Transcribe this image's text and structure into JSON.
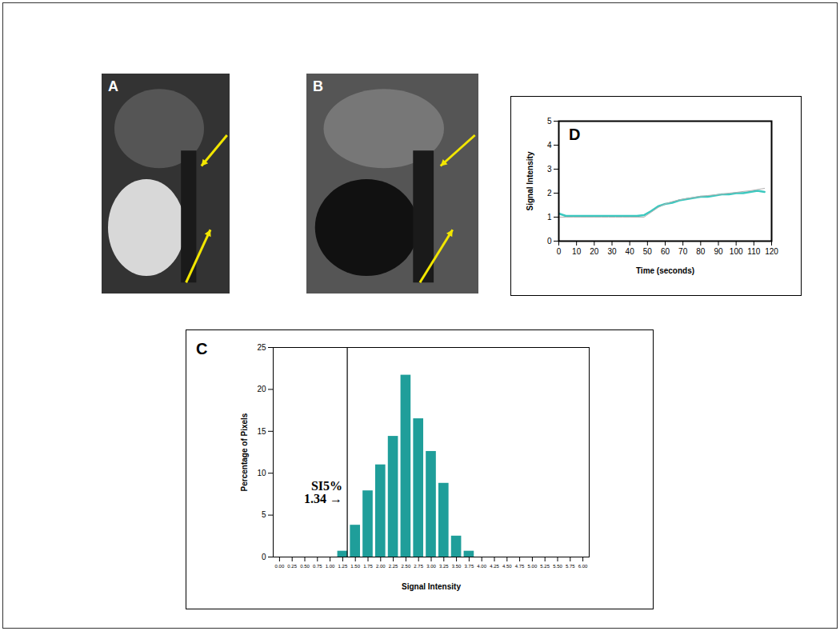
{
  "images": [
    {
      "label": "A"
    },
    {
      "label": "B"
    }
  ],
  "chart_data": [
    {
      "type": "bar",
      "title": "C",
      "x": [
        1.25,
        1.5,
        1.75,
        2.0,
        2.25,
        2.5,
        2.75,
        3.0,
        3.25,
        3.5,
        3.75
      ],
      "values": [
        0.7,
        3.8,
        7.9,
        11,
        14.4,
        21.7,
        16.5,
        12.6,
        8.8,
        2.5,
        0.7
      ],
      "color": "#1f9e9a",
      "xlabel": "Signal Intensity",
      "ylabel": "Percentage of Pixels",
      "xlim": [
        -0.125,
        6.125
      ],
      "xticks": [
        {
          "value": 0,
          "label": "0.00"
        },
        {
          "value": 0.25,
          "label": "0.25"
        },
        {
          "value": 0.5,
          "label": "0.50"
        },
        {
          "value": 0.75,
          "label": "0.75"
        },
        {
          "value": 1,
          "label": "1.00"
        },
        {
          "value": 1.25,
          "label": "1.25"
        },
        {
          "value": 1.5,
          "label": "1.50"
        },
        {
          "value": 1.75,
          "label": "1.75"
        },
        {
          "value": 2,
          "label": "2.00"
        },
        {
          "value": 2.25,
          "label": "2.25"
        },
        {
          "value": 2.5,
          "label": "2.50"
        },
        {
          "value": 2.75,
          "label": "2.75"
        },
        {
          "value": 3,
          "label": "3.00"
        },
        {
          "value": 3.25,
          "label": "3.25"
        },
        {
          "value": 3.5,
          "label": "3.50"
        },
        {
          "value": 3.75,
          "label": "3.75"
        },
        {
          "value": 4,
          "label": "4.00"
        },
        {
          "value": 4.25,
          "label": "4.25"
        },
        {
          "value": 4.5,
          "label": "4.50"
        },
        {
          "value": 4.75,
          "label": "4.75"
        },
        {
          "value": 5,
          "label": "5.00"
        },
        {
          "value": 5.25,
          "label": "5.25"
        },
        {
          "value": 5.5,
          "label": "5.50"
        },
        {
          "value": 5.75,
          "label": "5.75"
        },
        {
          "value": 6,
          "label": "6.00"
        }
      ],
      "ylim": [
        0,
        25
      ],
      "yticks": [
        0,
        5,
        10,
        15,
        20,
        25
      ],
      "annotations": [
        {
          "text": "SI5%",
          "label": "1.34 →",
          "x": 1.34
        }
      ]
    },
    {
      "type": "line",
      "title": "D",
      "x": [
        0,
        4,
        8,
        12,
        16,
        20,
        24,
        28,
        32,
        36,
        40,
        44,
        48,
        52,
        56,
        60,
        64,
        68,
        72,
        76,
        80,
        84,
        88,
        92,
        96,
        100,
        104,
        108,
        112,
        116
      ],
      "series": [
        {
          "color": "#3cc8bf",
          "values": [
            1.15,
            1.05,
            1.05,
            1.05,
            1.05,
            1.05,
            1.05,
            1.05,
            1.05,
            1.05,
            1.05,
            1.05,
            1.08,
            1.25,
            1.45,
            1.55,
            1.6,
            1.7,
            1.75,
            1.8,
            1.85,
            1.85,
            1.9,
            1.95,
            1.95,
            2.0,
            2.0,
            2.05,
            2.1,
            2.05
          ]
        },
        {
          "color": "#b0b0b0",
          "values": [
            1.0,
            1.0,
            1.0,
            1.0,
            1.0,
            1.0,
            1.0,
            1.0,
            1.0,
            1.0,
            1.0,
            1.0,
            1.0,
            1.2,
            1.4,
            1.55,
            1.65,
            1.72,
            1.78,
            1.82,
            1.87,
            1.9,
            1.93,
            1.96,
            2.0,
            2.03,
            2.07,
            2.1,
            2.15,
            2.2
          ]
        }
      ],
      "xlabel": "Time (seconds)",
      "ylabel": "Signal Intensity",
      "xlim": [
        0,
        120
      ],
      "xticks": [
        0,
        10,
        20,
        30,
        40,
        50,
        60,
        70,
        80,
        90,
        100,
        110,
        120
      ],
      "ylim": [
        0,
        5
      ],
      "yticks": [
        0,
        1,
        2,
        3,
        4,
        5
      ]
    }
  ]
}
